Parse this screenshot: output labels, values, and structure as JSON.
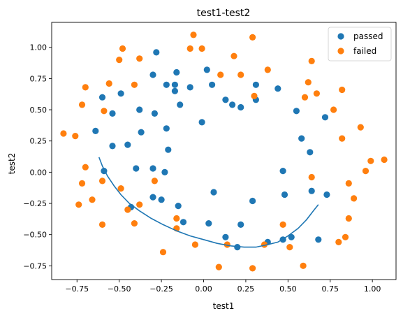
{
  "chart_data": {
    "type": "scatter",
    "title": "test1-test2",
    "xlabel": "test1",
    "ylabel": "test2",
    "xlim": [
      -0.9,
      1.14
    ],
    "ylim": [
      -0.86,
      1.2
    ],
    "xticks": [
      -0.75,
      -0.5,
      -0.25,
      0.0,
      0.25,
      0.5,
      0.75,
      1.0
    ],
    "xtick_labels": [
      "−0.75",
      "−0.50",
      "−0.25",
      "0.00",
      "0.25",
      "0.50",
      "0.75",
      "1.00"
    ],
    "yticks": [
      -0.75,
      -0.5,
      -0.25,
      0.0,
      0.25,
      0.5,
      0.75,
      1.0
    ],
    "ytick_labels": [
      "−0.75",
      "−0.50",
      "−0.25",
      "0.00",
      "0.25",
      "0.50",
      "0.75",
      "1.00"
    ],
    "grid": false,
    "legend": {
      "position": "top-right"
    },
    "series": [
      {
        "name": "passed",
        "color": "#1f77b4",
        "points": [
          [
            -0.28,
            0.96
          ],
          [
            0.02,
            0.82
          ],
          [
            -0.16,
            0.8
          ],
          [
            -0.3,
            0.78
          ],
          [
            -0.22,
            0.7
          ],
          [
            -0.17,
            0.7
          ],
          [
            -0.08,
            0.68
          ],
          [
            0.05,
            0.7
          ],
          [
            0.31,
            0.7
          ],
          [
            0.44,
            0.67
          ],
          [
            -0.17,
            0.65
          ],
          [
            -0.49,
            0.63
          ],
          [
            -0.6,
            0.6
          ],
          [
            0.13,
            0.58
          ],
          [
            0.31,
            0.58
          ],
          [
            0.17,
            0.54
          ],
          [
            0.22,
            0.52
          ],
          [
            -0.14,
            0.54
          ],
          [
            -0.38,
            0.5
          ],
          [
            -0.54,
            0.47
          ],
          [
            -0.29,
            0.47
          ],
          [
            0.55,
            0.49
          ],
          [
            0.72,
            0.44
          ],
          [
            -0.01,
            0.4
          ],
          [
            -0.22,
            0.35
          ],
          [
            -0.64,
            0.33
          ],
          [
            -0.37,
            0.32
          ],
          [
            0.58,
            0.27
          ],
          [
            -0.45,
            0.22
          ],
          [
            -0.54,
            0.21
          ],
          [
            -0.21,
            0.18
          ],
          [
            0.63,
            0.16
          ],
          [
            -0.4,
            0.03
          ],
          [
            -0.3,
            0.03
          ],
          [
            0.47,
            0.01
          ],
          [
            -0.59,
            0.01
          ],
          [
            -0.23,
            0.0
          ],
          [
            0.64,
            -0.15
          ],
          [
            0.06,
            -0.16
          ],
          [
            0.73,
            -0.18
          ],
          [
            0.48,
            -0.18
          ],
          [
            -0.3,
            -0.2
          ],
          [
            -0.25,
            -0.22
          ],
          [
            0.29,
            -0.23
          ],
          [
            -0.15,
            -0.27
          ],
          [
            -0.43,
            -0.28
          ],
          [
            -0.12,
            -0.4
          ],
          [
            0.03,
            -0.41
          ],
          [
            0.22,
            -0.42
          ],
          [
            0.52,
            -0.52
          ],
          [
            0.13,
            -0.52
          ],
          [
            0.38,
            -0.56
          ],
          [
            0.47,
            -0.54
          ],
          [
            0.68,
            -0.54
          ],
          [
            0.2,
            -0.6
          ]
        ]
      },
      {
        "name": "failed",
        "color": "#ff7f0e",
        "points": [
          [
            -0.06,
            1.1
          ],
          [
            0.29,
            1.08
          ],
          [
            -0.48,
            0.99
          ],
          [
            -0.08,
            0.99
          ],
          [
            -0.01,
            0.99
          ],
          [
            0.18,
            0.93
          ],
          [
            -0.38,
            0.91
          ],
          [
            -0.5,
            0.9
          ],
          [
            0.64,
            0.89
          ],
          [
            0.38,
            0.82
          ],
          [
            0.1,
            0.78
          ],
          [
            0.22,
            0.78
          ],
          [
            0.62,
            0.72
          ],
          [
            -0.56,
            0.71
          ],
          [
            -0.41,
            0.7
          ],
          [
            -0.7,
            0.68
          ],
          [
            0.82,
            0.66
          ],
          [
            0.67,
            0.63
          ],
          [
            0.3,
            0.61
          ],
          [
            0.6,
            0.6
          ],
          [
            -0.72,
            0.54
          ],
          [
            0.77,
            0.5
          ],
          [
            -0.59,
            0.49
          ],
          [
            0.93,
            0.36
          ],
          [
            -0.83,
            0.31
          ],
          [
            -0.76,
            0.29
          ],
          [
            0.82,
            0.27
          ],
          [
            0.99,
            0.09
          ],
          [
            1.07,
            0.1
          ],
          [
            -0.7,
            0.04
          ],
          [
            0.96,
            0.01
          ],
          [
            0.64,
            -0.04
          ],
          [
            -0.6,
            -0.07
          ],
          [
            -0.29,
            -0.07
          ],
          [
            -0.72,
            -0.09
          ],
          [
            0.86,
            -0.09
          ],
          [
            -0.49,
            -0.13
          ],
          [
            -0.66,
            -0.22
          ],
          [
            0.89,
            -0.21
          ],
          [
            -0.38,
            -0.26
          ],
          [
            -0.74,
            -0.26
          ],
          [
            -0.45,
            -0.3
          ],
          [
            0.86,
            -0.37
          ],
          [
            -0.16,
            -0.37
          ],
          [
            -0.16,
            -0.45
          ],
          [
            -0.41,
            -0.41
          ],
          [
            0.47,
            -0.42
          ],
          [
            -0.6,
            -0.42
          ],
          [
            0.84,
            -0.52
          ],
          [
            0.8,
            -0.56
          ],
          [
            0.51,
            -0.6
          ],
          [
            0.14,
            -0.58
          ],
          [
            0.36,
            -0.58
          ],
          [
            -0.05,
            -0.58
          ],
          [
            -0.24,
            -0.64
          ],
          [
            0.59,
            -0.75
          ],
          [
            0.09,
            -0.76
          ],
          [
            0.29,
            -0.77
          ]
        ]
      }
    ],
    "boundary": {
      "color": "#1f77b4",
      "points": [
        [
          -0.62,
          0.12
        ],
        [
          -0.6,
          0.05
        ],
        [
          -0.57,
          -0.03
        ],
        [
          -0.53,
          -0.11
        ],
        [
          -0.49,
          -0.18
        ],
        [
          -0.44,
          -0.25
        ],
        [
          -0.38,
          -0.31
        ],
        [
          -0.31,
          -0.37
        ],
        [
          -0.24,
          -0.42
        ],
        [
          -0.16,
          -0.47
        ],
        [
          -0.08,
          -0.51
        ],
        [
          0.0,
          -0.54
        ],
        [
          0.08,
          -0.57
        ],
        [
          0.16,
          -0.59
        ],
        [
          0.24,
          -0.6
        ],
        [
          0.31,
          -0.6
        ],
        [
          0.38,
          -0.58
        ],
        [
          0.44,
          -0.56
        ],
        [
          0.5,
          -0.51
        ],
        [
          0.56,
          -0.45
        ],
        [
          0.61,
          -0.38
        ],
        [
          0.65,
          -0.31
        ],
        [
          0.68,
          -0.26
        ]
      ]
    }
  }
}
